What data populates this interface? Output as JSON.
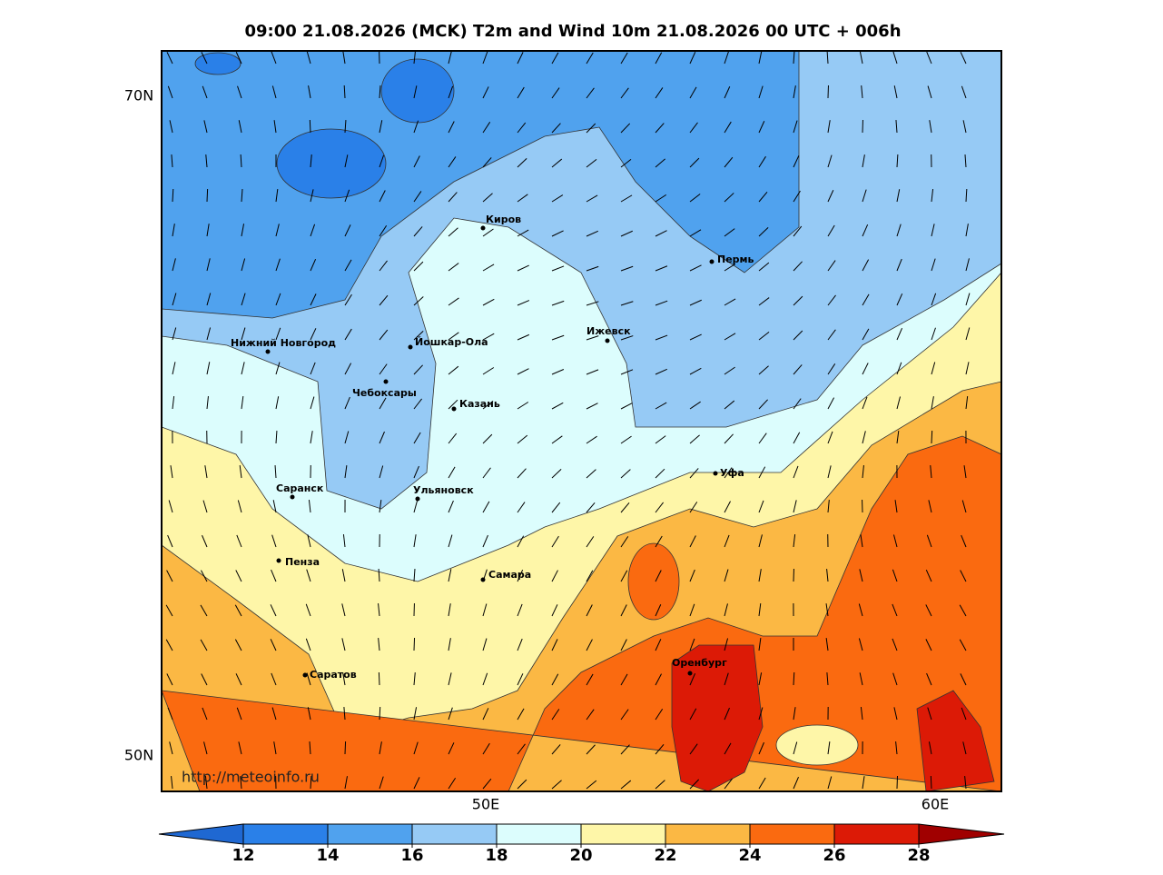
{
  "title": "09:00 21.08.2026 (MCK) T2m and Wind 10m 21.08.2026 00 UTC + 006h",
  "lat_labels": [
    "70N",
    "50N"
  ],
  "lon_labels": [
    "50E",
    "60E"
  ],
  "cities": [
    "Киров",
    "Пермь",
    "Нижний Новгород",
    "Йошкар-Ола",
    "Ижевск",
    "Чебоксары",
    "Казань",
    "Уфа",
    "Саранск",
    "Ульяновск",
    "Пенза",
    "Самара",
    "Оренбург",
    "Саратов"
  ],
  "url": "http://meteoinfo.ru",
  "colorbar": {
    "ticks": [
      12,
      14,
      16,
      18,
      20,
      22,
      24,
      26,
      28
    ],
    "colors": [
      "#1f68d2",
      "#2a80e8",
      "#50a2ee",
      "#96caf5",
      "#dcfdfd",
      "#fef6a8",
      "#fbb844",
      "#fa6a10",
      "#dc1a06",
      "#a00000"
    ]
  }
}
